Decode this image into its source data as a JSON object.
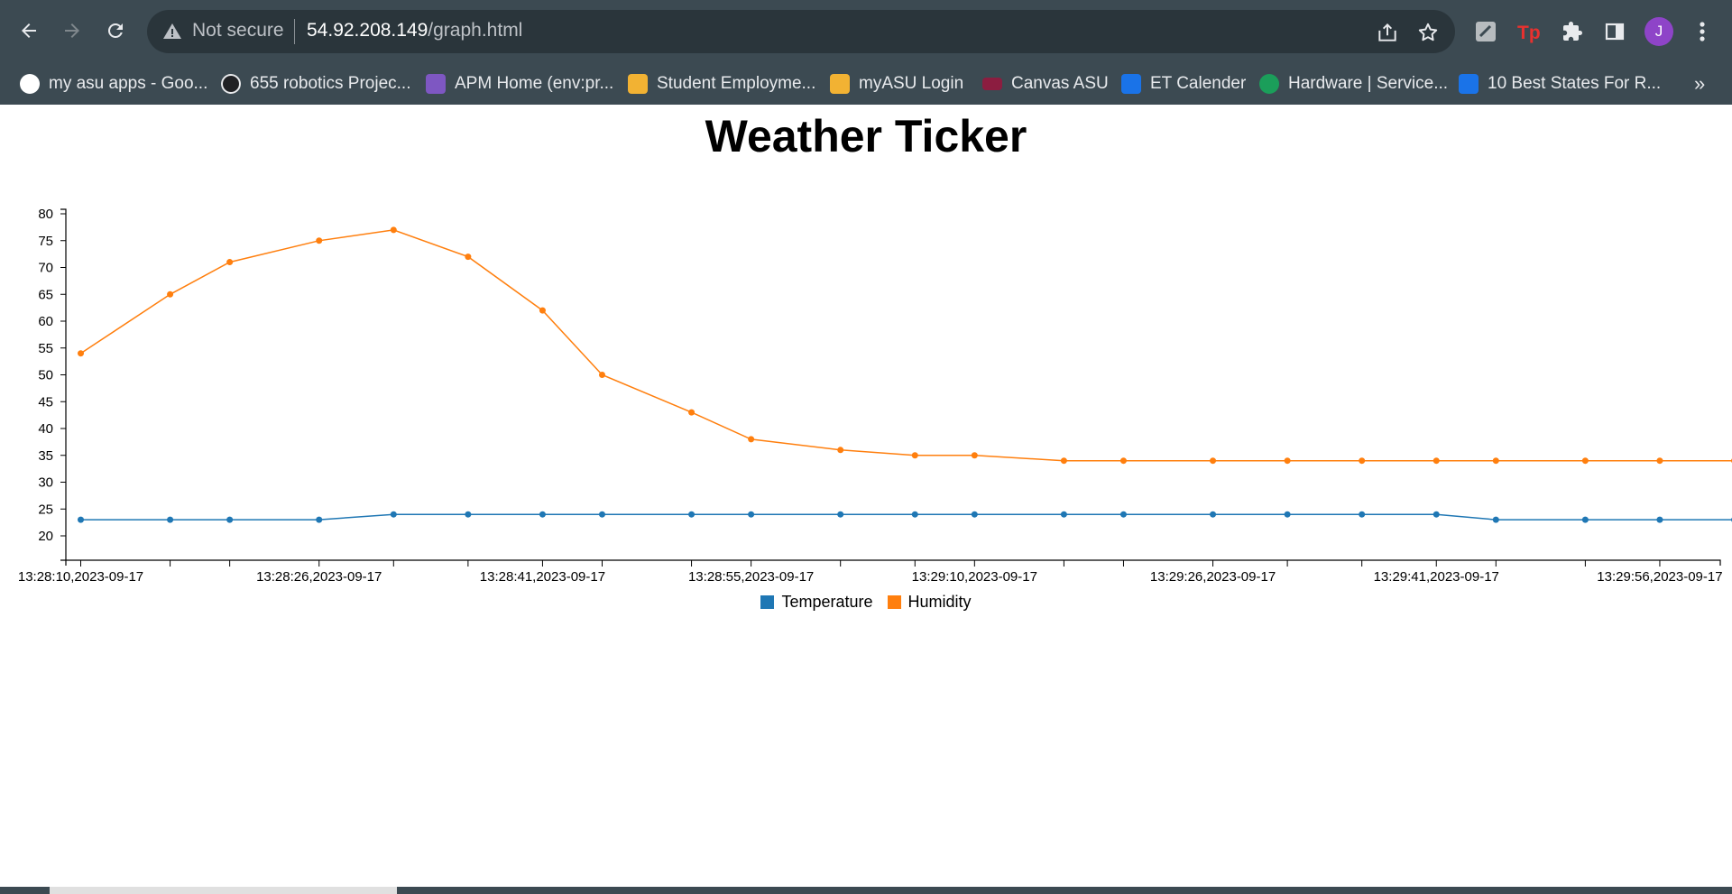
{
  "browser": {
    "security_label": "Not secure",
    "url_host": "54.92.208.149",
    "url_path": "/graph.html",
    "profile_initial": "J",
    "bookmarks": [
      {
        "label": "my asu apps - Goo...",
        "icon": "google-icon",
        "color": "#ffffff"
      },
      {
        "label": "655 robotics Projec...",
        "icon": "robot-glasses-icon",
        "color": "#202124"
      },
      {
        "label": "APM Home (env:pr...",
        "icon": "apm-icon",
        "color": "#7e57c2"
      },
      {
        "label": "Student Employme...",
        "icon": "asu-sunburst-icon",
        "color": "#f2b233"
      },
      {
        "label": "myASU Login",
        "icon": "asu-sunburst-icon",
        "color": "#f2b233"
      },
      {
        "label": "Canvas ASU",
        "icon": "canvas-icon",
        "color": "#8c1d40"
      },
      {
        "label": "ET Calender",
        "icon": "calendar-icon",
        "color": "#1a73e8"
      },
      {
        "label": "Hardware | Service...",
        "icon": "service-icon",
        "color": "#1b9e5a"
      },
      {
        "label": "10 Best States For R...",
        "icon": "zillow-icon",
        "color": "#1a73e8"
      }
    ],
    "more_bookmarks": "»"
  },
  "page": {
    "title": "Weather Ticker"
  },
  "chart_data": {
    "type": "line",
    "title": "Weather Ticker",
    "xlabel": "",
    "ylabel": "",
    "ylim": [
      20,
      80
    ],
    "yticks": [
      20,
      25,
      30,
      35,
      40,
      45,
      50,
      55,
      60,
      65,
      70,
      75,
      80
    ],
    "grid": false,
    "legend_position": "bottom",
    "xlim": [
      "13:28:09,2023-09-17",
      "13:30:00,2023-09-17"
    ],
    "x_tick_labels": [
      "13:28:10,2023-09-17",
      "13:28:26,2023-09-17",
      "13:28:41,2023-09-17",
      "13:28:55,2023-09-17",
      "13:29:10,2023-09-17",
      "13:29:26,2023-09-17",
      "13:29:41,2023-09-17",
      "13:29:56,2023-09-17"
    ],
    "x": [
      "13:28:10,2023-09-17",
      "13:28:16,2023-09-17",
      "13:28:20,2023-09-17",
      "13:28:26,2023-09-17",
      "13:28:31,2023-09-17",
      "13:28:36,2023-09-17",
      "13:28:41,2023-09-17",
      "13:28:45,2023-09-17",
      "13:28:51,2023-09-17",
      "13:28:55,2023-09-17",
      "13:29:01,2023-09-17",
      "13:29:06,2023-09-17",
      "13:29:10,2023-09-17",
      "13:29:16,2023-09-17",
      "13:29:20,2023-09-17",
      "13:29:26,2023-09-17",
      "13:29:31,2023-09-17",
      "13:29:36,2023-09-17",
      "13:29:41,2023-09-17",
      "13:29:45,2023-09-17",
      "13:29:51,2023-09-17",
      "13:29:56,2023-09-17",
      "13:30:01,2023-09-17"
    ],
    "series": [
      {
        "name": "Temperature",
        "color": "#1f77b4",
        "values": [
          23,
          23,
          23,
          23,
          24,
          24,
          24,
          24,
          24,
          24,
          24,
          24,
          24,
          24,
          24,
          24,
          24,
          24,
          24,
          23,
          23,
          23,
          23
        ]
      },
      {
        "name": "Humidity",
        "color": "#ff7f0e",
        "values": [
          54,
          65,
          71,
          75,
          77,
          72,
          62,
          50,
          43,
          38,
          36,
          35,
          35,
          34,
          34,
          34,
          34,
          34,
          34,
          34,
          34,
          34,
          34
        ]
      }
    ]
  }
}
